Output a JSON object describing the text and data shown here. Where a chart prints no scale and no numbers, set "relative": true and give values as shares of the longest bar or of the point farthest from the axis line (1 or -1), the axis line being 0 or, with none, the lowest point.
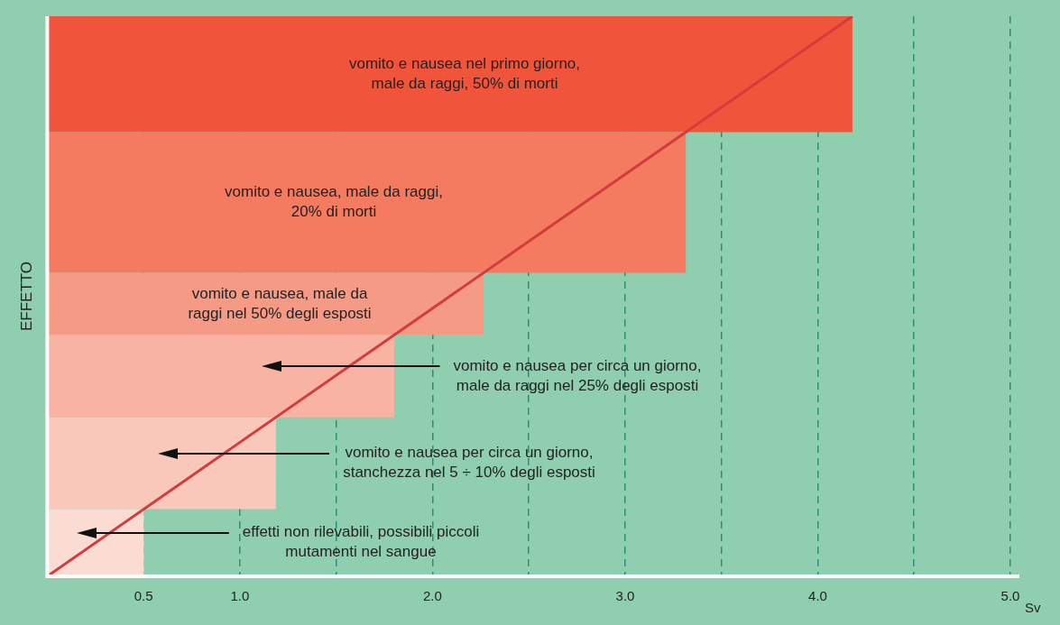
{
  "chart_data": {
    "type": "line",
    "relative": true,
    "xlabel": "Sv",
    "ylabel": "EFFETTO",
    "x": [
      0,
      4.18
    ],
    "series": [
      {
        "color": "#d23c3c",
        "values": [
          0,
          1
        ]
      }
    ],
    "xlim": [
      0,
      5.0
    ],
    "xticks": [
      {
        "value": 0.5,
        "label": "0.5"
      },
      {
        "value": 1.0,
        "label": "1.0"
      },
      {
        "value": 1.5,
        "label": null
      },
      {
        "value": 2.0,
        "label": "2.0"
      },
      {
        "value": 2.5,
        "label": null
      },
      {
        "value": 3.0,
        "label": "3.0"
      },
      {
        "value": 3.5,
        "label": null
      },
      {
        "value": 4.0,
        "label": "4.0"
      },
      {
        "value": 4.5,
        "label": null
      },
      {
        "value": 5.0,
        "label": "5.0"
      }
    ],
    "grid": "x",
    "line_style": "solid",
    "marker": "none",
    "legend": false,
    "bands": [
      {
        "axis": "y",
        "from": 0.793,
        "to": 1,
        "label": "vomito e nausea nel primo giorno,\nmale da raggi, 50% di morti",
        "color": "#f0553c"
      },
      {
        "axis": "y",
        "from": 0.542,
        "to": 0.793,
        "label": "vomito e nausea, male da raggi,\n20% di morti",
        "color": "#f47a60"
      },
      {
        "axis": "y",
        "from": 0.431,
        "to": 0.542,
        "label": "vomito e nausea, male da\nraggi nel 50% degli esposti",
        "color": "#f59a84"
      },
      {
        "axis": "y",
        "from": 0.284,
        "to": 0.431,
        "label": "vomito e nausea per circa un giorno,\nmale da raggi nel 25% degli esposti",
        "color": "#f8b3a2"
      },
      {
        "axis": "y",
        "from": 0.12,
        "to": 0.284,
        "label": "vomito e nausea per circa un giorno,\nstanchezza nel 5 ÷ 10% degli esposti",
        "color": "#fac8bb"
      },
      {
        "axis": "y",
        "from": 0,
        "to": 0.12,
        "label": "effetti non rilevabili, possibili piccoli\nmutamenti nel sangue",
        "color": "#fbdcd3"
      }
    ]
  }
}
